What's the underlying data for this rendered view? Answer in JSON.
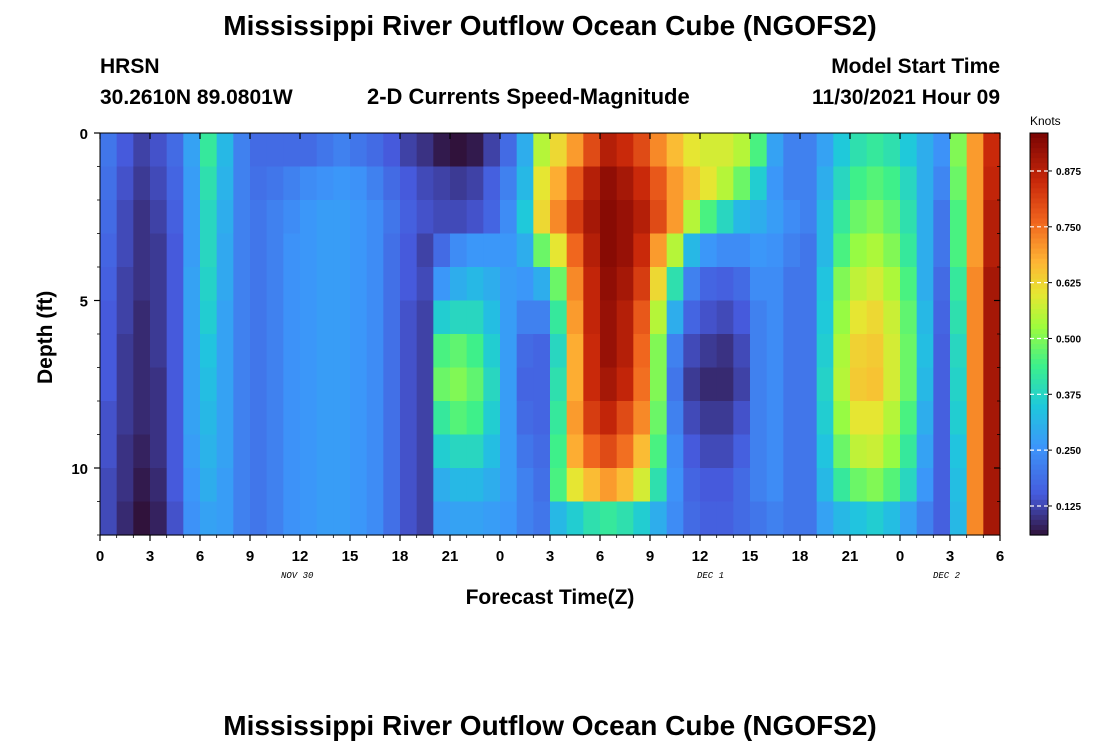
{
  "page": {
    "title_top": "Mississippi River Outflow Ocean Cube (NGOFS2)",
    "title_bottom": "Mississippi River Outflow Ocean Cube (NGOFS2)",
    "station": "HRSN",
    "coords": "30.2610N  89.0801W",
    "subtitle": "2-D Currents Speed-Magnitude",
    "model_start_label": "Model Start Time",
    "model_start_value": "11/30/2021 Hour 09",
    "date_labels": [
      "NOV 30",
      "DEC 1",
      "DEC 2"
    ]
  },
  "chart_data": {
    "type": "heatmap",
    "title": "2-D Currents Speed-Magnitude",
    "xlabel": "Forecast Time(Z)",
    "ylabel": "Depth (ft)",
    "x_tick_labels": [
      "0",
      "3",
      "6",
      "9",
      "12",
      "15",
      "18",
      "21",
      "0",
      "3",
      "6",
      "9",
      "12",
      "15",
      "18",
      "21",
      "0",
      "3",
      "6"
    ],
    "x_tick_hours": [
      0,
      3,
      6,
      9,
      12,
      15,
      18,
      21,
      24,
      27,
      30,
      33,
      36,
      39,
      42,
      45,
      48,
      51,
      54
    ],
    "xlim_hours": [
      0,
      54
    ],
    "y_tick_labels": [
      "0",
      "5",
      "10"
    ],
    "y_tick_values": [
      0,
      5,
      10
    ],
    "ylim": [
      0,
      12
    ],
    "y_inverted": true,
    "colorbar": {
      "label": "Knots",
      "ticks": [
        "0.125",
        "0.250",
        "0.375",
        "0.500",
        "0.625",
        "0.750",
        "0.875"
      ],
      "tick_values": [
        0.125,
        0.25,
        0.375,
        0.5,
        0.625,
        0.75,
        0.875
      ],
      "range": [
        0.06,
        0.96
      ]
    },
    "depth_levels": [
      0.5,
      1.5,
      2.5,
      3.5,
      4.5,
      5.5,
      6.5,
      7.5,
      8.5,
      9.5,
      10.5,
      11.5
    ],
    "time_hours": [
      0,
      1,
      2,
      3,
      4,
      5,
      6,
      7,
      8,
      9,
      10,
      11,
      12,
      13,
      14,
      15,
      16,
      17,
      18,
      19,
      20,
      21,
      22,
      23,
      24,
      25,
      26,
      27,
      28,
      29,
      30,
      31,
      32,
      33,
      34,
      35,
      36,
      37,
      38,
      39,
      40,
      41,
      42,
      43,
      44,
      45,
      46,
      47,
      48,
      49,
      50,
      51,
      52,
      53
    ],
    "speed_knots": [
      [
        0.2,
        0.15,
        0.12,
        0.14,
        0.18,
        0.28,
        0.42,
        0.32,
        0.22,
        0.18,
        0.18,
        0.18,
        0.18,
        0.2,
        0.22,
        0.2,
        0.18,
        0.15,
        0.12,
        0.1,
        0.07,
        0.06,
        0.07,
        0.12,
        0.18,
        0.3,
        0.55,
        0.62,
        0.7,
        0.8,
        0.88,
        0.85,
        0.8,
        0.72,
        0.66,
        0.6,
        0.58,
        0.58,
        0.55,
        0.45,
        0.28,
        0.22,
        0.22,
        0.28,
        0.35,
        0.4,
        0.42,
        0.4,
        0.35,
        0.3,
        0.25,
        0.5,
        0.7,
        0.85
      ],
      [
        0.19,
        0.14,
        0.11,
        0.13,
        0.17,
        0.27,
        0.4,
        0.31,
        0.22,
        0.19,
        0.2,
        0.22,
        0.24,
        0.25,
        0.26,
        0.25,
        0.22,
        0.18,
        0.15,
        0.13,
        0.12,
        0.11,
        0.12,
        0.16,
        0.22,
        0.32,
        0.6,
        0.68,
        0.78,
        0.88,
        0.93,
        0.9,
        0.85,
        0.78,
        0.7,
        0.65,
        0.6,
        0.55,
        0.48,
        0.36,
        0.26,
        0.22,
        0.22,
        0.3,
        0.38,
        0.44,
        0.46,
        0.44,
        0.38,
        0.3,
        0.23,
        0.48,
        0.7,
        0.86
      ],
      [
        0.18,
        0.13,
        0.1,
        0.12,
        0.16,
        0.27,
        0.38,
        0.3,
        0.22,
        0.2,
        0.22,
        0.24,
        0.26,
        0.27,
        0.27,
        0.26,
        0.24,
        0.2,
        0.16,
        0.14,
        0.13,
        0.13,
        0.14,
        0.17,
        0.24,
        0.35,
        0.62,
        0.72,
        0.82,
        0.9,
        0.94,
        0.92,
        0.88,
        0.8,
        0.7,
        0.55,
        0.45,
        0.38,
        0.32,
        0.3,
        0.27,
        0.24,
        0.22,
        0.32,
        0.42,
        0.48,
        0.5,
        0.47,
        0.4,
        0.3,
        0.2,
        0.45,
        0.7,
        0.88
      ],
      [
        0.17,
        0.13,
        0.1,
        0.11,
        0.15,
        0.27,
        0.38,
        0.29,
        0.22,
        0.2,
        0.22,
        0.25,
        0.26,
        0.27,
        0.27,
        0.26,
        0.24,
        0.19,
        0.15,
        0.12,
        0.18,
        0.24,
        0.26,
        0.26,
        0.26,
        0.3,
        0.48,
        0.6,
        0.76,
        0.88,
        0.94,
        0.92,
        0.85,
        0.7,
        0.55,
        0.32,
        0.26,
        0.24,
        0.24,
        0.26,
        0.25,
        0.22,
        0.2,
        0.32,
        0.45,
        0.52,
        0.54,
        0.5,
        0.42,
        0.3,
        0.2,
        0.45,
        0.7,
        0.88
      ],
      [
        0.16,
        0.12,
        0.1,
        0.11,
        0.15,
        0.28,
        0.37,
        0.29,
        0.22,
        0.2,
        0.22,
        0.25,
        0.26,
        0.27,
        0.27,
        0.26,
        0.24,
        0.19,
        0.15,
        0.13,
        0.26,
        0.3,
        0.32,
        0.3,
        0.27,
        0.26,
        0.3,
        0.48,
        0.72,
        0.86,
        0.93,
        0.9,
        0.82,
        0.62,
        0.4,
        0.22,
        0.17,
        0.16,
        0.18,
        0.24,
        0.24,
        0.2,
        0.2,
        0.34,
        0.5,
        0.56,
        0.58,
        0.54,
        0.45,
        0.3,
        0.18,
        0.42,
        0.72,
        0.9
      ],
      [
        0.15,
        0.12,
        0.09,
        0.11,
        0.15,
        0.28,
        0.36,
        0.28,
        0.22,
        0.2,
        0.22,
        0.25,
        0.26,
        0.27,
        0.27,
        0.26,
        0.24,
        0.19,
        0.14,
        0.12,
        0.36,
        0.38,
        0.38,
        0.33,
        0.27,
        0.22,
        0.22,
        0.42,
        0.7,
        0.86,
        0.92,
        0.88,
        0.78,
        0.55,
        0.3,
        0.17,
        0.14,
        0.13,
        0.15,
        0.22,
        0.24,
        0.2,
        0.2,
        0.35,
        0.52,
        0.6,
        0.62,
        0.57,
        0.47,
        0.32,
        0.17,
        0.4,
        0.72,
        0.9
      ],
      [
        0.15,
        0.11,
        0.09,
        0.11,
        0.15,
        0.28,
        0.34,
        0.28,
        0.22,
        0.2,
        0.22,
        0.25,
        0.26,
        0.27,
        0.27,
        0.26,
        0.24,
        0.19,
        0.14,
        0.12,
        0.45,
        0.47,
        0.44,
        0.36,
        0.27,
        0.18,
        0.17,
        0.38,
        0.68,
        0.85,
        0.92,
        0.88,
        0.76,
        0.5,
        0.22,
        0.13,
        0.11,
        0.1,
        0.13,
        0.22,
        0.24,
        0.2,
        0.2,
        0.36,
        0.54,
        0.63,
        0.64,
        0.58,
        0.48,
        0.33,
        0.16,
        0.38,
        0.72,
        0.9
      ],
      [
        0.15,
        0.11,
        0.09,
        0.1,
        0.15,
        0.28,
        0.33,
        0.28,
        0.22,
        0.2,
        0.22,
        0.25,
        0.26,
        0.27,
        0.27,
        0.26,
        0.24,
        0.19,
        0.14,
        0.12,
        0.48,
        0.5,
        0.47,
        0.38,
        0.27,
        0.17,
        0.17,
        0.4,
        0.68,
        0.85,
        0.9,
        0.86,
        0.75,
        0.5,
        0.2,
        0.11,
        0.09,
        0.09,
        0.12,
        0.22,
        0.24,
        0.2,
        0.2,
        0.37,
        0.55,
        0.64,
        0.65,
        0.58,
        0.48,
        0.32,
        0.16,
        0.37,
        0.72,
        0.9
      ],
      [
        0.14,
        0.11,
        0.09,
        0.1,
        0.15,
        0.28,
        0.32,
        0.28,
        0.22,
        0.2,
        0.22,
        0.25,
        0.26,
        0.27,
        0.27,
        0.26,
        0.24,
        0.19,
        0.14,
        0.12,
        0.42,
        0.46,
        0.44,
        0.36,
        0.27,
        0.18,
        0.17,
        0.42,
        0.7,
        0.82,
        0.86,
        0.8,
        0.72,
        0.48,
        0.22,
        0.13,
        0.11,
        0.11,
        0.14,
        0.22,
        0.24,
        0.2,
        0.2,
        0.36,
        0.52,
        0.6,
        0.6,
        0.55,
        0.45,
        0.3,
        0.16,
        0.36,
        0.72,
        0.9
      ],
      [
        0.14,
        0.1,
        0.08,
        0.1,
        0.15,
        0.27,
        0.31,
        0.28,
        0.22,
        0.2,
        0.22,
        0.25,
        0.26,
        0.27,
        0.27,
        0.26,
        0.24,
        0.19,
        0.14,
        0.12,
        0.36,
        0.38,
        0.38,
        0.33,
        0.27,
        0.2,
        0.18,
        0.44,
        0.68,
        0.76,
        0.8,
        0.75,
        0.66,
        0.45,
        0.24,
        0.15,
        0.13,
        0.13,
        0.16,
        0.22,
        0.24,
        0.2,
        0.2,
        0.34,
        0.48,
        0.56,
        0.57,
        0.52,
        0.42,
        0.28,
        0.16,
        0.34,
        0.72,
        0.9
      ],
      [
        0.13,
        0.1,
        0.07,
        0.09,
        0.15,
        0.26,
        0.3,
        0.27,
        0.22,
        0.2,
        0.22,
        0.25,
        0.26,
        0.27,
        0.27,
        0.26,
        0.24,
        0.19,
        0.14,
        0.12,
        0.3,
        0.32,
        0.32,
        0.3,
        0.27,
        0.22,
        0.19,
        0.45,
        0.6,
        0.66,
        0.7,
        0.66,
        0.58,
        0.4,
        0.25,
        0.17,
        0.15,
        0.15,
        0.18,
        0.22,
        0.24,
        0.2,
        0.2,
        0.32,
        0.42,
        0.48,
        0.5,
        0.46,
        0.38,
        0.26,
        0.16,
        0.33,
        0.72,
        0.9
      ],
      [
        0.13,
        0.09,
        0.06,
        0.08,
        0.14,
        0.25,
        0.28,
        0.27,
        0.22,
        0.2,
        0.22,
        0.25,
        0.26,
        0.27,
        0.27,
        0.26,
        0.24,
        0.19,
        0.14,
        0.12,
        0.27,
        0.28,
        0.28,
        0.27,
        0.26,
        0.22,
        0.2,
        0.32,
        0.36,
        0.4,
        0.42,
        0.4,
        0.36,
        0.3,
        0.24,
        0.18,
        0.16,
        0.16,
        0.18,
        0.2,
        0.22,
        0.2,
        0.2,
        0.28,
        0.32,
        0.34,
        0.36,
        0.33,
        0.28,
        0.22,
        0.16,
        0.32,
        0.72,
        0.9
      ]
    ]
  }
}
